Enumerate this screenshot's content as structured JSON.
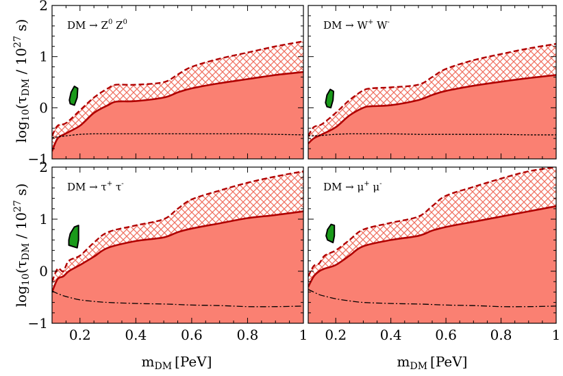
{
  "figure": {
    "xlabel": "m",
    "xlabel_sub": "DM",
    "xlabel_unit": "[PeV]",
    "ylabel_pre": "log",
    "ylabel_sub10": "10",
    "ylabel_mid": "(τ",
    "ylabel_subDM": "DM",
    "ylabel_post": " / 10",
    "ylabel_exp": "27",
    "ylabel_end": " s)"
  },
  "colors": {
    "band_fill": "#fa8072",
    "band_line": "#b00000",
    "hatch": "#f07060",
    "blob": "#1a9a1a",
    "frame": "#000000"
  },
  "chart_data": [
    {
      "type": "area",
      "panel": "top-left",
      "title_text": "DM → Z",
      "title_p1_base": "Z",
      "title_p1_sup": "0",
      "title_p2_base": "Z",
      "title_p2_sup": "0",
      "xlim": [
        0.1,
        1.0
      ],
      "ylim": [
        -1,
        2
      ],
      "xticks": [
        "0.2",
        "0.4",
        "0.6",
        "0.8",
        "1"
      ],
      "yticks": [
        "−1",
        "0",
        "1",
        "2"
      ],
      "x": [
        0.1,
        0.12,
        0.15,
        0.2,
        0.25,
        0.3,
        0.33,
        0.4,
        0.5,
        0.55,
        0.6,
        0.7,
        0.8,
        0.9,
        1.0
      ],
      "lower_solid": [
        -0.85,
        -0.6,
        -0.5,
        -0.35,
        -0.1,
        0.05,
        0.12,
        0.13,
        0.2,
        0.3,
        0.38,
        0.48,
        0.56,
        0.64,
        0.7
      ],
      "upper_dashed": [
        -0.55,
        -0.35,
        -0.3,
        -0.05,
        0.2,
        0.38,
        0.45,
        0.45,
        0.5,
        0.65,
        0.8,
        0.96,
        1.08,
        1.2,
        1.3
      ],
      "reference_dotted": [
        -0.58,
        -0.57,
        -0.55,
        -0.52,
        -0.51,
        -0.51,
        -0.51,
        -0.51,
        -0.51,
        -0.51,
        -0.51,
        -0.51,
        -0.51,
        -0.52,
        -0.53
      ],
      "reference_style": "dotted",
      "blob": {
        "x": [
          0.165,
          0.18,
          0.19,
          0.192,
          0.18,
          0.168,
          0.162,
          0.165
        ],
        "y": [
          0.08,
          0.05,
          0.2,
          0.38,
          0.42,
          0.3,
          0.15,
          0.08
        ]
      }
    },
    {
      "type": "area",
      "panel": "top-right",
      "title_text": "DM → W",
      "title_p1_base": "W",
      "title_p1_sup": "+",
      "title_p2_base": "W",
      "title_p2_sup": "-",
      "xlim": [
        0.1,
        1.0
      ],
      "ylim": [
        -1,
        2
      ],
      "xticks": [
        "0.2",
        "0.4",
        "0.6",
        "0.8",
        "1"
      ],
      "yticks": [],
      "x": [
        0.1,
        0.12,
        0.15,
        0.2,
        0.25,
        0.3,
        0.33,
        0.4,
        0.5,
        0.55,
        0.6,
        0.7,
        0.8,
        0.9,
        1.0
      ],
      "lower_solid": [
        -0.7,
        -0.6,
        -0.52,
        -0.38,
        -0.15,
        0.0,
        0.03,
        0.05,
        0.15,
        0.25,
        0.33,
        0.43,
        0.51,
        0.58,
        0.64
      ],
      "upper_dashed": [
        -0.55,
        -0.38,
        -0.32,
        -0.1,
        0.15,
        0.34,
        0.38,
        0.4,
        0.45,
        0.6,
        0.76,
        0.93,
        1.05,
        1.16,
        1.25
      ],
      "reference_dotted": [
        -0.55,
        -0.55,
        -0.54,
        -0.52,
        -0.51,
        -0.51,
        -0.51,
        -0.51,
        -0.52,
        -0.52,
        -0.52,
        -0.52,
        -0.52,
        -0.53,
        -0.53
      ],
      "reference_style": "dotted",
      "blob": {
        "x": [
          0.168,
          0.182,
          0.19,
          0.192,
          0.18,
          0.168,
          0.163,
          0.168
        ],
        "y": [
          0.02,
          0.0,
          0.15,
          0.32,
          0.36,
          0.25,
          0.1,
          0.02
        ]
      }
    },
    {
      "type": "area",
      "panel": "bottom-left",
      "title_text": "DM → τ",
      "title_p1_base": "τ",
      "title_p1_sup": "+",
      "title_p2_base": "τ",
      "title_p2_sup": "-",
      "xlim": [
        0.1,
        1.0
      ],
      "ylim": [
        -1,
        2
      ],
      "xticks": [
        "0.2",
        "0.4",
        "0.6",
        "0.8",
        "1"
      ],
      "yticks": [
        "−1",
        "0",
        "1",
        "2"
      ],
      "x": [
        0.1,
        0.12,
        0.14,
        0.16,
        0.2,
        0.25,
        0.3,
        0.4,
        0.5,
        0.55,
        0.6,
        0.7,
        0.8,
        0.9,
        1.0
      ],
      "lower_solid": [
        -0.4,
        -0.15,
        -0.1,
        0.0,
        0.12,
        0.28,
        0.45,
        0.58,
        0.65,
        0.75,
        0.82,
        0.92,
        1.02,
        1.08,
        1.15
      ],
      "upper_dashed": [
        -0.2,
        0.05,
        0.0,
        0.2,
        0.3,
        0.55,
        0.75,
        0.88,
        1.0,
        1.2,
        1.38,
        1.55,
        1.7,
        1.82,
        1.92
      ],
      "reference_dotted": [
        -0.38,
        -0.43,
        -0.47,
        -0.5,
        -0.55,
        -0.58,
        -0.6,
        -0.62,
        -0.63,
        -0.64,
        -0.65,
        -0.66,
        -0.68,
        -0.68,
        -0.67
      ],
      "reference_style": "dashdot",
      "blob": {
        "x": [
          0.16,
          0.19,
          0.195,
          0.195,
          0.18,
          0.165,
          0.16,
          0.16
        ],
        "y": [
          0.5,
          0.45,
          0.6,
          0.88,
          0.85,
          0.72,
          0.6,
          0.5
        ]
      }
    },
    {
      "type": "area",
      "panel": "bottom-right",
      "title_text": "DM → μ",
      "title_p1_base": "μ",
      "title_p1_sup": "+",
      "title_p2_base": "μ",
      "title_p2_sup": "-",
      "xlim": [
        0.1,
        1.0
      ],
      "ylim": [
        -1,
        2
      ],
      "xticks": [
        "0.2",
        "0.4",
        "0.6",
        "0.8",
        "1"
      ],
      "yticks": [],
      "x": [
        0.1,
        0.12,
        0.14,
        0.16,
        0.2,
        0.25,
        0.3,
        0.4,
        0.5,
        0.55,
        0.6,
        0.7,
        0.8,
        0.9,
        1.0
      ],
      "lower_solid": [
        -0.3,
        -0.1,
        0.0,
        0.05,
        0.12,
        0.3,
        0.48,
        0.6,
        0.68,
        0.78,
        0.85,
        0.95,
        1.05,
        1.15,
        1.25
      ],
      "upper_dashed": [
        -0.1,
        0.1,
        0.15,
        0.3,
        0.4,
        0.6,
        0.8,
        0.93,
        1.05,
        1.25,
        1.45,
        1.62,
        1.78,
        1.92,
        2.0
      ],
      "reference_dotted": [
        -0.35,
        -0.4,
        -0.45,
        -0.48,
        -0.53,
        -0.57,
        -0.6,
        -0.62,
        -0.63,
        -0.64,
        -0.65,
        -0.66,
        -0.68,
        -0.68,
        -0.67
      ],
      "reference_style": "dashdot",
      "blob": {
        "x": [
          0.17,
          0.19,
          0.195,
          0.195,
          0.183,
          0.17,
          0.165,
          0.17
        ],
        "y": [
          0.6,
          0.55,
          0.68,
          0.88,
          0.9,
          0.8,
          0.68,
          0.6
        ]
      }
    }
  ]
}
